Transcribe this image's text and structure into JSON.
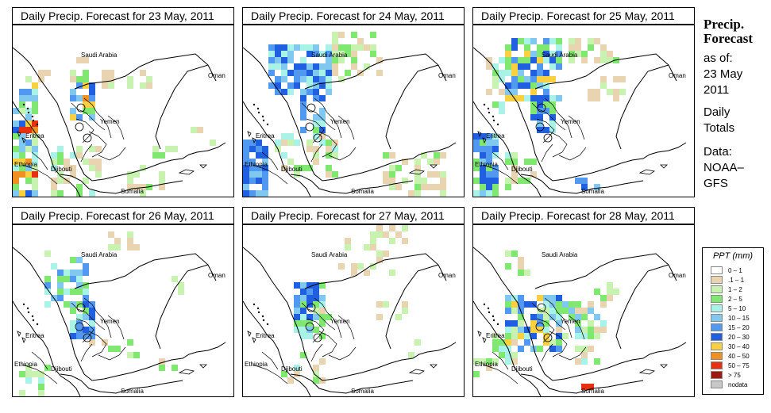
{
  "panels": [
    {
      "title": "Daily Precip. Forecast for  23 May, 2011"
    },
    {
      "title": "Daily Precip. Forecast for  24 May, 2011"
    },
    {
      "title": "Daily Precip. Forecast for  25 May, 2011"
    },
    {
      "title": "Daily Precip. Forecast for  26 May, 2011"
    },
    {
      "title": "Daily Precip. Forecast for  27 May, 2011"
    },
    {
      "title": "Daily Precip. Forecast for  28 May, 2011"
    }
  ],
  "map_labels": {
    "saudi": "Saudi Arabia",
    "oman": "Oman",
    "yemen": "Yemen",
    "eritrea": "Eritrea",
    "ethiopia": "Ethiopia",
    "djibouti": "Djibouti",
    "somalia": "Somalia"
  },
  "sidebar": {
    "title1": "Precip.",
    "title2": "Forecast",
    "asof": "as of:",
    "date1": "23 May",
    "date2": "2011",
    "daily1": "Daily",
    "daily2": "Totals",
    "data1": "Data:",
    "data2": "NOAA–",
    "data3": "GFS"
  },
  "legend": {
    "title": "PPT (mm)",
    "items": [
      {
        "label": "0 – 1",
        "color": "#ffffff"
      },
      {
        "label": ".1 – 1",
        "color": "#e8d4b0"
      },
      {
        "label": "1 – 2",
        "color": "#c8f2b0"
      },
      {
        "label": "2 – 5",
        "color": "#80e870"
      },
      {
        "label": "5 – 10",
        "color": "#a8f2e8"
      },
      {
        "label": "10 – 15",
        "color": "#80c8f0"
      },
      {
        "label": "15 – 20",
        "color": "#5098f0"
      },
      {
        "label": "20 – 30",
        "color": "#2060e0"
      },
      {
        "label": "30 – 40",
        "color": "#f8d040"
      },
      {
        "label": "40 – 50",
        "color": "#f09020"
      },
      {
        "label": "50 – 75",
        "color": "#e83010"
      },
      {
        "label": "> 75",
        "color": "#a01810"
      },
      {
        "label": "nodata",
        "color": "#c8c8c8"
      }
    ]
  }
}
